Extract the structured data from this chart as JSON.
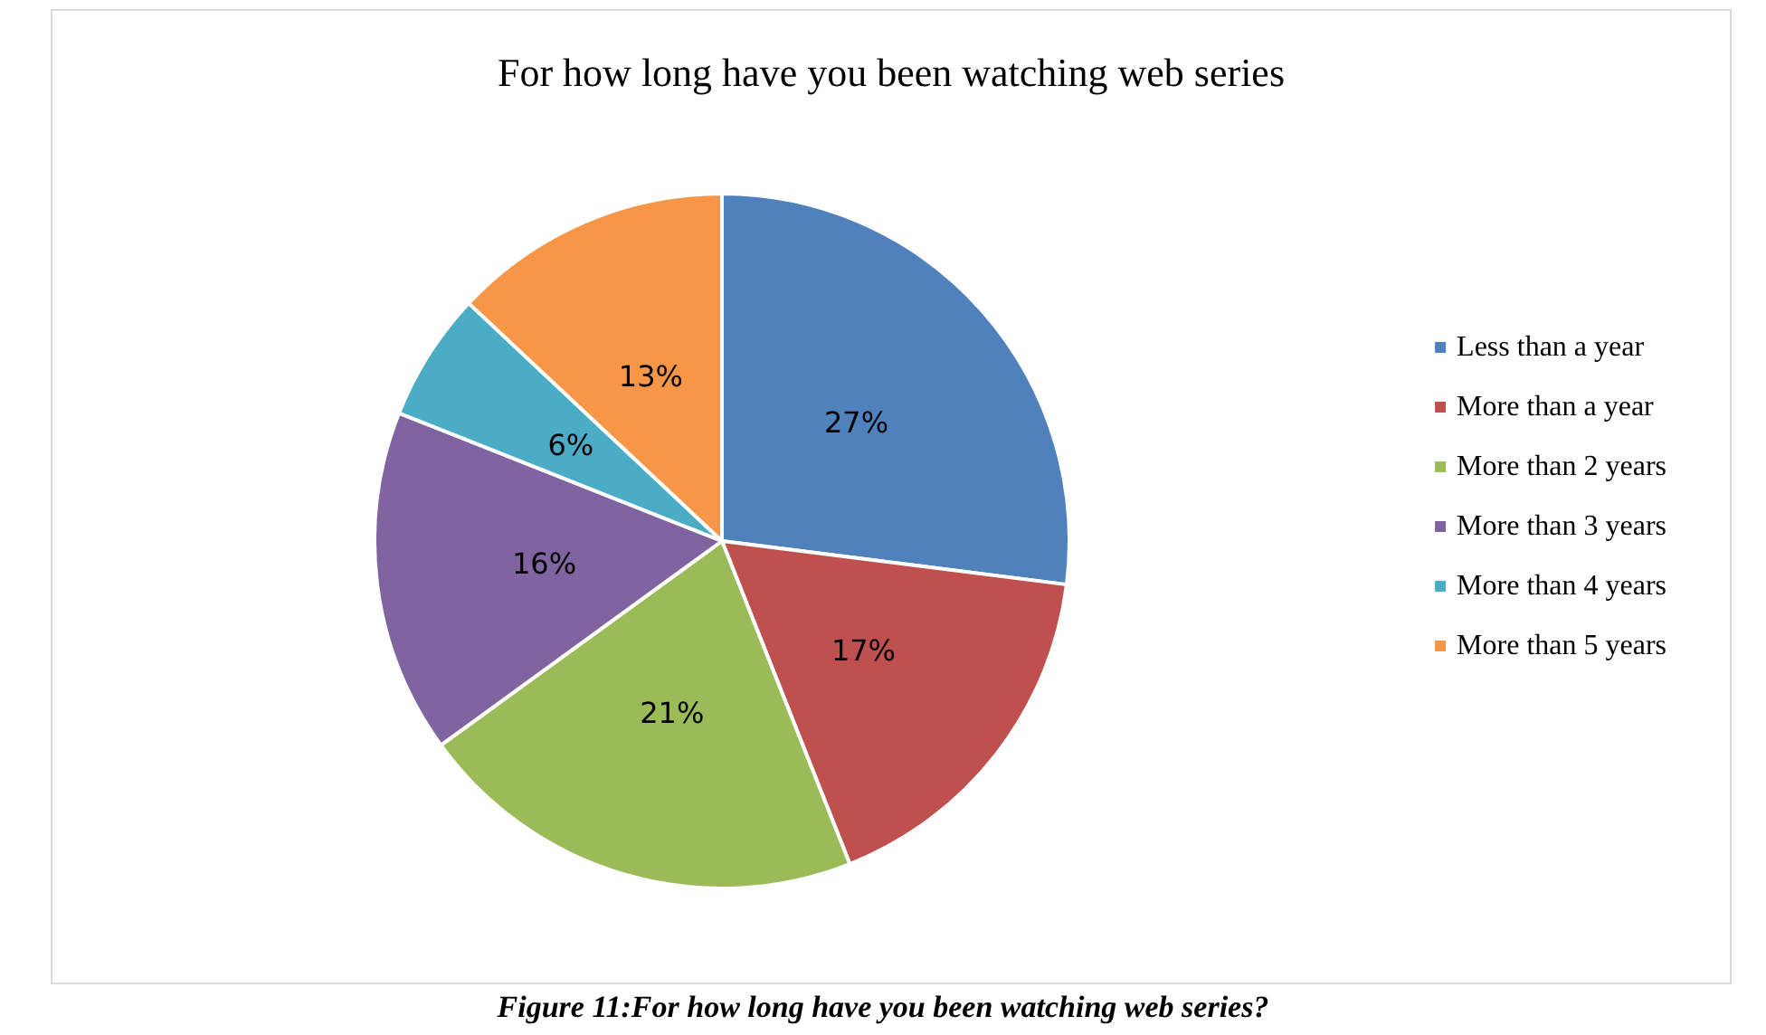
{
  "chart_data": {
    "type": "pie",
    "title": "For how long have you been watching web series",
    "categories": [
      "Less than a year",
      "More than a year",
      "More than 2 years",
      "More than 3 years",
      "More than 4 years",
      "More than 5 years"
    ],
    "values": [
      27,
      17,
      21,
      16,
      6,
      13
    ],
    "colors": [
      "#4f81bd",
      "#c0504d",
      "#9bbb59",
      "#8064a2",
      "#4bacc6",
      "#f79646"
    ],
    "value_labels": [
      "27%",
      "17%",
      "21%",
      "16%",
      "6%",
      "13%"
    ],
    "legend": "right",
    "annotations": [
      "Figure 11:For how long have you been watching web series?"
    ]
  }
}
